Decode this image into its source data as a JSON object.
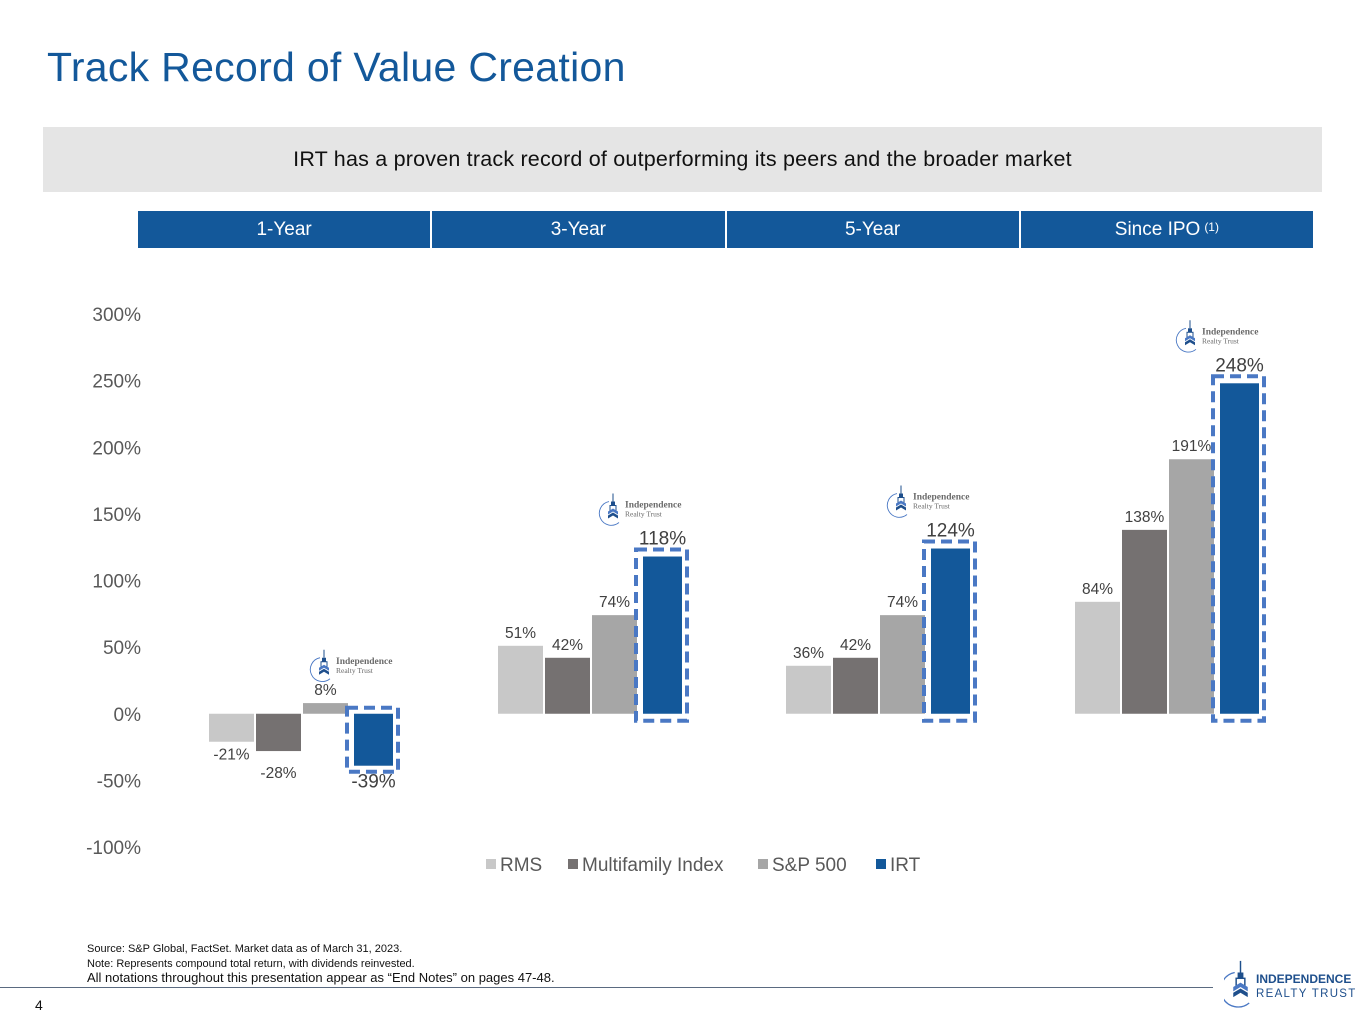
{
  "title": "Track Record of Value Creation",
  "banner": "IRT has a proven track record of outperforming its peers and the broader market",
  "tabs": [
    {
      "label": "1-Year",
      "sup": ""
    },
    {
      "label": "3-Year",
      "sup": ""
    },
    {
      "label": "5-Year",
      "sup": ""
    },
    {
      "label": "Since IPO",
      "sup": "(1)"
    }
  ],
  "logo": {
    "line1": "Independence",
    "line2": "Realty Trust"
  },
  "footer_logo": {
    "line1": "INDEPENDENCE",
    "line2": "REALTY TRUST"
  },
  "footnotes": {
    "source": "Source: S&P Global, FactSet. Market data as of March 31, 2023.",
    "note": "Note: Represents compound total return, with dividends reinvested.",
    "endnotes": "All notations throughout this presentation appear as “End Notes” on pages 47-48."
  },
  "page_number": "4",
  "colors": {
    "brand_blue": "#13589a",
    "highlight_dash": "#4a78c4",
    "RMS": "#c8c8c8",
    "Multifamily Index": "#757171",
    "S&P 500": "#a6a6a6",
    "IRT": "#13589a"
  },
  "chart_data": {
    "type": "bar",
    "title": "",
    "xlabel": "",
    "ylabel": "",
    "categories": [
      "1-Year",
      "3-Year",
      "5-Year",
      "Since IPO"
    ],
    "series": [
      {
        "name": "RMS",
        "values": [
          -21,
          51,
          36,
          84
        ],
        "labels": [
          "-21%",
          "51%",
          "36%",
          "84%"
        ]
      },
      {
        "name": "Multifamily Index",
        "values": [
          -28,
          42,
          42,
          138
        ],
        "labels": [
          "-28%",
          "42%",
          "42%",
          "138%"
        ]
      },
      {
        "name": "S&P 500",
        "values": [
          8,
          74,
          74,
          191
        ],
        "labels": [
          "8%",
          "74%",
          "74%",
          "191%"
        ]
      },
      {
        "name": "IRT",
        "values": [
          -39,
          118,
          124,
          248
        ],
        "labels": [
          "-39%",
          "118%",
          "124%",
          "248%"
        ]
      }
    ],
    "ylim": [
      -100,
      300
    ],
    "yticks": [
      300,
      250,
      200,
      150,
      100,
      50,
      0,
      -50,
      -100
    ],
    "ytick_labels": [
      "300%",
      "250%",
      "200%",
      "150%",
      "100%",
      "50%",
      "0%",
      "-50%",
      "-100%"
    ],
    "grid": false,
    "legend": {
      "placement": "bottom",
      "entries": [
        "RMS",
        "Multifamily Index",
        "S&P 500",
        "IRT"
      ]
    },
    "highlight_series": "IRT"
  }
}
